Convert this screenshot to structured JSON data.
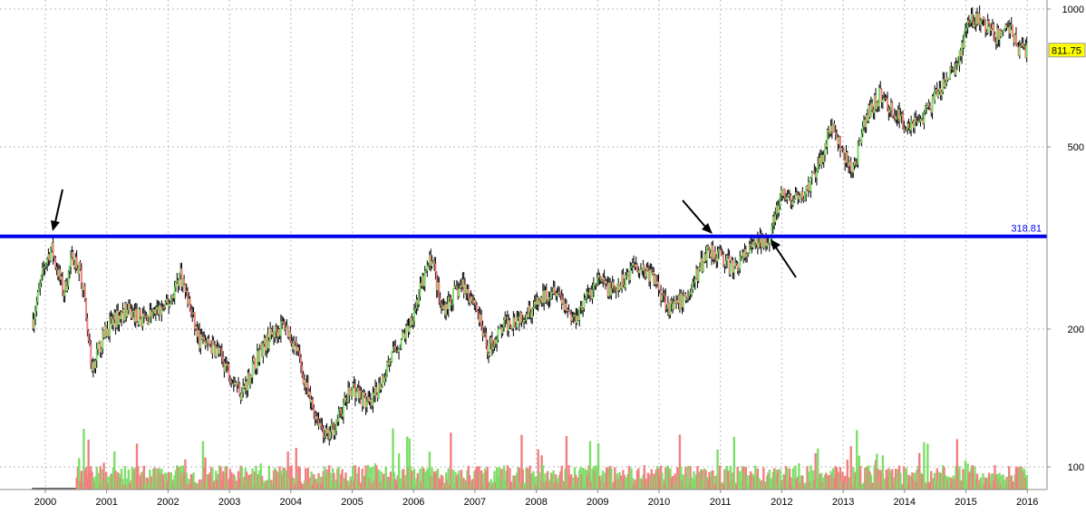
{
  "chart_data": {
    "type": "candlestick",
    "scale": "log",
    "grid": true,
    "ylim": [
      90,
      1020
    ],
    "x_ticks": [
      "2000",
      "2001",
      "2002",
      "2003",
      "2004",
      "2005",
      "2006",
      "2007",
      "2008",
      "2009",
      "2010",
      "2011",
      "2012",
      "2013",
      "2014",
      "2015",
      "2016"
    ],
    "y_ticks": [
      {
        "value": 100,
        "label": "100"
      },
      {
        "value": 200,
        "label": "200"
      },
      {
        "value": 500,
        "label": "500"
      },
      {
        "value": 1000,
        "label": "1000"
      }
    ],
    "last_price": {
      "value": 811.75,
      "label": "811.75"
    },
    "resistance_line": {
      "value": 318.81,
      "label": "318.81",
      "color": "#0000ee"
    },
    "colors": {
      "up": "#7fdd6a",
      "down": "#f08080",
      "grid": "#bbbbbb",
      "last_price_bg": "#ffff00"
    },
    "price_path": [
      {
        "date": 1999.8,
        "price": 210
      },
      {
        "date": 2000.0,
        "price": 280
      },
      {
        "date": 2000.1,
        "price": 300
      },
      {
        "date": 2000.3,
        "price": 240
      },
      {
        "date": 2000.45,
        "price": 290
      },
      {
        "date": 2000.6,
        "price": 260
      },
      {
        "date": 2000.75,
        "price": 165
      },
      {
        "date": 2001.0,
        "price": 200
      },
      {
        "date": 2001.3,
        "price": 220
      },
      {
        "date": 2001.6,
        "price": 210
      },
      {
        "date": 2002.0,
        "price": 225
      },
      {
        "date": 2002.2,
        "price": 265
      },
      {
        "date": 2002.5,
        "price": 190
      },
      {
        "date": 2002.8,
        "price": 180
      },
      {
        "date": 2003.2,
        "price": 145
      },
      {
        "date": 2003.5,
        "price": 180
      },
      {
        "date": 2003.7,
        "price": 195
      },
      {
        "date": 2003.9,
        "price": 205
      },
      {
        "date": 2004.1,
        "price": 180
      },
      {
        "date": 2004.3,
        "price": 140
      },
      {
        "date": 2004.6,
        "price": 115
      },
      {
        "date": 2004.8,
        "price": 130
      },
      {
        "date": 2005.0,
        "price": 150
      },
      {
        "date": 2005.3,
        "price": 135
      },
      {
        "date": 2005.6,
        "price": 170
      },
      {
        "date": 2005.9,
        "price": 200
      },
      {
        "date": 2006.1,
        "price": 240
      },
      {
        "date": 2006.3,
        "price": 290
      },
      {
        "date": 2006.45,
        "price": 220
      },
      {
        "date": 2006.8,
        "price": 250
      },
      {
        "date": 2007.0,
        "price": 230
      },
      {
        "date": 2007.2,
        "price": 180
      },
      {
        "date": 2007.5,
        "price": 205
      },
      {
        "date": 2008.0,
        "price": 225
      },
      {
        "date": 2008.3,
        "price": 250
      },
      {
        "date": 2008.6,
        "price": 210
      },
      {
        "date": 2009.0,
        "price": 255
      },
      {
        "date": 2009.3,
        "price": 240
      },
      {
        "date": 2009.6,
        "price": 280
      },
      {
        "date": 2009.9,
        "price": 260
      },
      {
        "date": 2010.2,
        "price": 220
      },
      {
        "date": 2010.5,
        "price": 240
      },
      {
        "date": 2010.8,
        "price": 300
      },
      {
        "date": 2011.0,
        "price": 290
      },
      {
        "date": 2011.2,
        "price": 270
      },
      {
        "date": 2011.5,
        "price": 300
      },
      {
        "date": 2011.8,
        "price": 320
      },
      {
        "date": 2012.0,
        "price": 390
      },
      {
        "date": 2012.3,
        "price": 380
      },
      {
        "date": 2012.6,
        "price": 450
      },
      {
        "date": 2012.8,
        "price": 560
      },
      {
        "date": 2013.0,
        "price": 480
      },
      {
        "date": 2013.15,
        "price": 440
      },
      {
        "date": 2013.4,
        "price": 590
      },
      {
        "date": 2013.6,
        "price": 650
      },
      {
        "date": 2013.8,
        "price": 600
      },
      {
        "date": 2014.0,
        "price": 560
      },
      {
        "date": 2014.3,
        "price": 580
      },
      {
        "date": 2014.6,
        "price": 670
      },
      {
        "date": 2014.9,
        "price": 780
      },
      {
        "date": 2015.0,
        "price": 920
      },
      {
        "date": 2015.2,
        "price": 950
      },
      {
        "date": 2015.5,
        "price": 870
      },
      {
        "date": 2015.7,
        "price": 920
      },
      {
        "date": 2015.85,
        "price": 830
      },
      {
        "date": 2016.0,
        "price": 811.75
      }
    ]
  }
}
